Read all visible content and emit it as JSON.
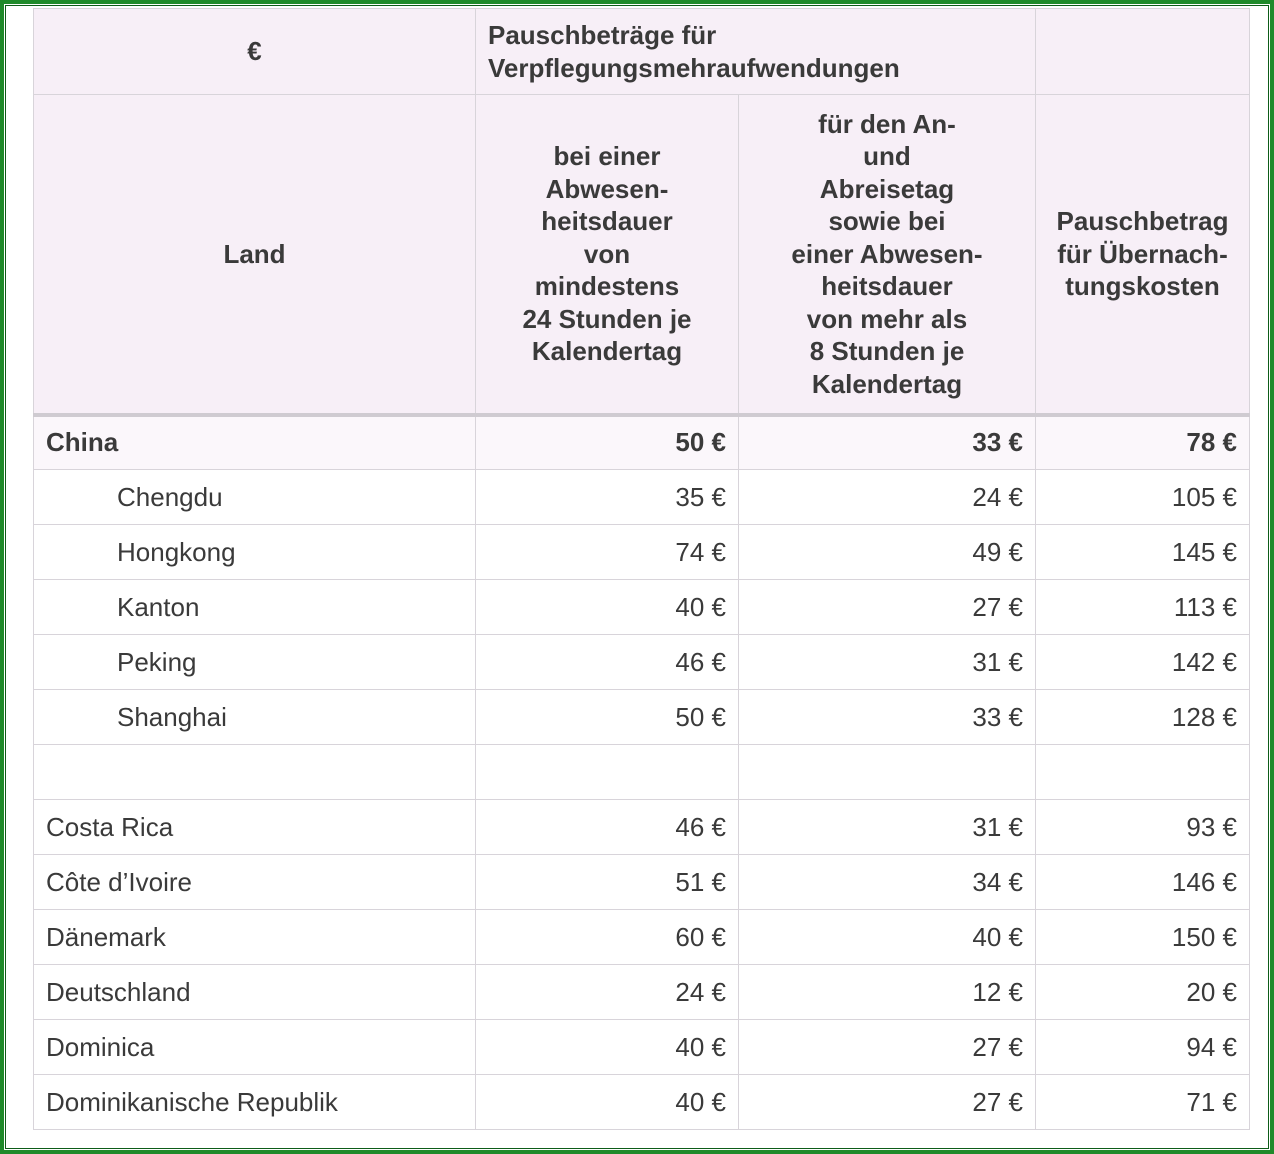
{
  "header": {
    "currency_symbol": "€",
    "group_title": "Pauschbeträge für\nVerpflegungsmehraufwendungen",
    "col_land": "Land",
    "col_24h": "bei einer\nAbwesen-\nheitsdauer\nvon\nmindestens\n24 Stunden je\nKalendertag",
    "col_8h": "für den An-\nund\nAbreisetag\nsowie bei\neiner Abwesen-\nheitsdauer\nvon mehr als\n8 Stunden je\nKalendertag",
    "col_overnight": "Pauschbetrag\nfür Übernach-\ntungskosten"
  },
  "rows": [
    {
      "name": "China",
      "v24": "50 €",
      "v8": "33 €",
      "night": "78 €"
    },
    {
      "name": "Chengdu",
      "v24": "35 €",
      "v8": "24 €",
      "night": "105 €"
    },
    {
      "name": "Hongkong",
      "v24": "74 €",
      "v8": "49 €",
      "night": "145 €"
    },
    {
      "name": "Kanton",
      "v24": "40 €",
      "v8": "27 €",
      "night": "113 €"
    },
    {
      "name": "Peking",
      "v24": "46 €",
      "v8": "31 €",
      "night": "142 €"
    },
    {
      "name": "Shanghai",
      "v24": "50 €",
      "v8": "33 €",
      "night": "128 €"
    },
    {
      "name": "",
      "v24": "",
      "v8": "",
      "night": ""
    },
    {
      "name": "Costa Rica",
      "v24": "46 €",
      "v8": "31 €",
      "night": "93 €"
    },
    {
      "name": "Côte d’Ivoire",
      "v24": "51 €",
      "v8": "34 €",
      "night": "146 €"
    },
    {
      "name": "Dänemark",
      "v24": "60 €",
      "v8": "40 €",
      "night": "150 €"
    },
    {
      "name": "Deutschland",
      "v24": "24 €",
      "v8": "12 €",
      "night": "20 €"
    },
    {
      "name": "Dominica",
      "v24": "40 €",
      "v8": "27 €",
      "night": "94 €"
    },
    {
      "name": "Dominikanische Republik",
      "v24": "40 €",
      "v8": "27 €",
      "night": "71 €"
    }
  ]
}
